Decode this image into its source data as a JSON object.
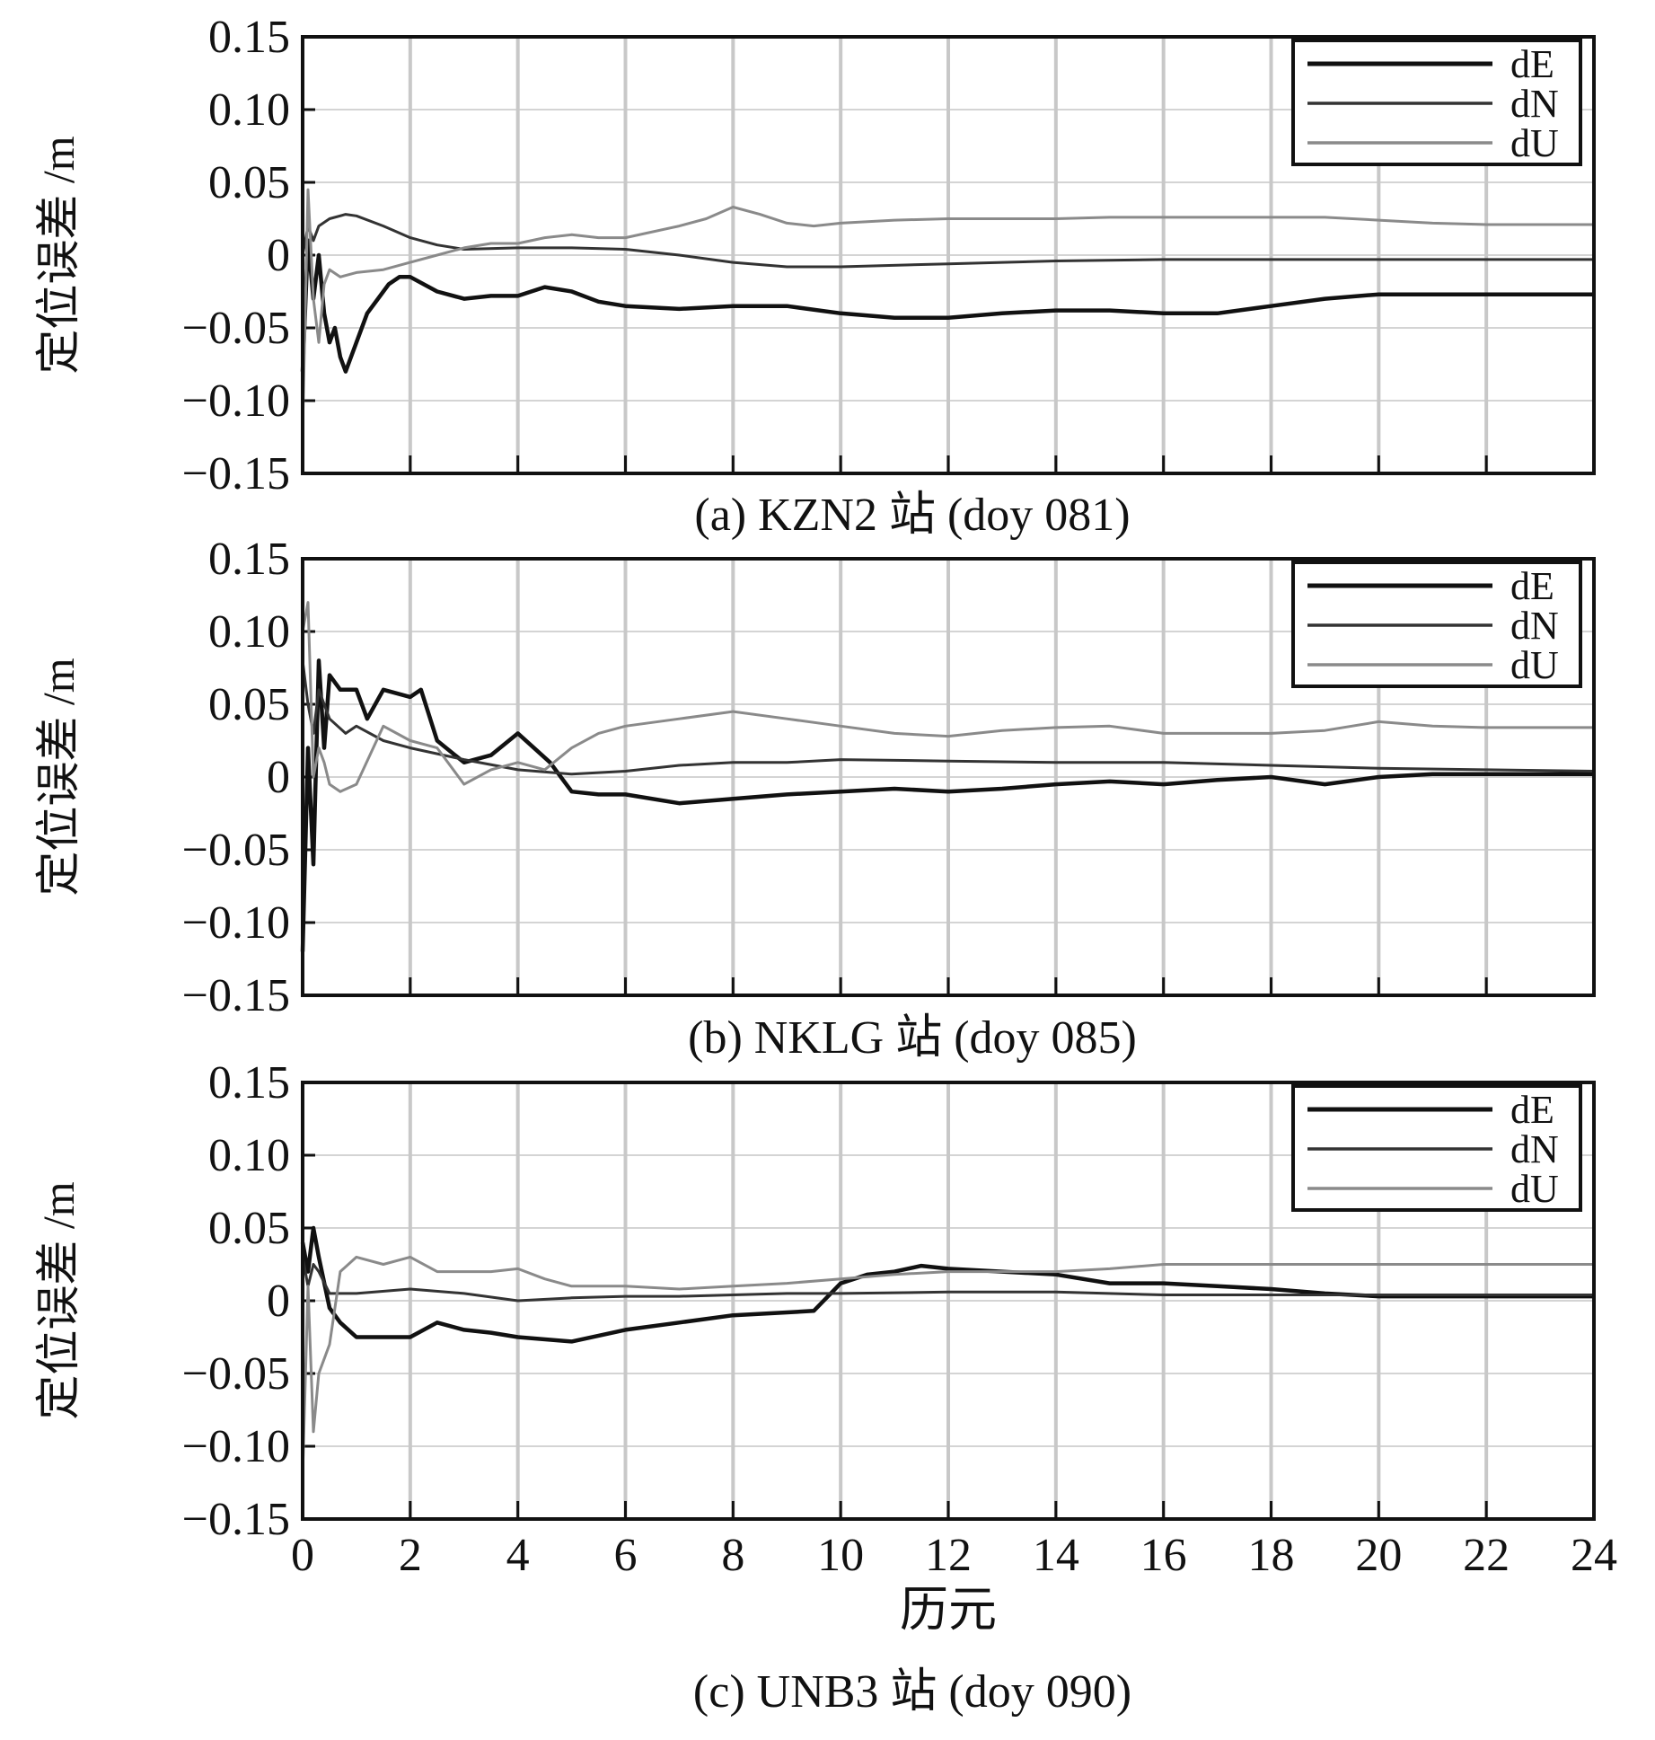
{
  "chart_data": [
    {
      "type": "line",
      "caption": "(a) KZN2 站 (doy 081)",
      "ylabel": "定位误差 /m",
      "xlabel": "",
      "xlim": [
        0,
        24
      ],
      "ylim": [
        -0.15,
        0.15
      ],
      "yticks": [
        "0.15",
        "0.10",
        "0.05",
        "0",
        "−0.05",
        "−0.10",
        "−0.15"
      ],
      "xticks": [],
      "grid": true,
      "legend": [
        "dE",
        "dN",
        "dU"
      ],
      "legend_position": "top-right",
      "series": [
        {
          "name": "dE",
          "color": "#111111",
          "width": 4.5,
          "x": [
            0,
            0.1,
            0.2,
            0.3,
            0.4,
            0.5,
            0.6,
            0.7,
            0.8,
            0.9,
            1.0,
            1.2,
            1.4,
            1.6,
            1.8,
            2.0,
            2.5,
            3.0,
            3.5,
            4.0,
            4.5,
            5.0,
            5.5,
            6.0,
            7.0,
            8.0,
            9.0,
            10.0,
            11.0,
            12.0,
            13.0,
            14.0,
            15.0,
            16.0,
            17.0,
            18.0,
            19.0,
            20.0,
            22.0,
            24.0
          ],
          "y": [
            -0.08,
            0.01,
            -0.03,
            0.0,
            -0.04,
            -0.06,
            -0.05,
            -0.07,
            -0.08,
            -0.07,
            -0.06,
            -0.04,
            -0.03,
            -0.02,
            -0.015,
            -0.015,
            -0.025,
            -0.03,
            -0.028,
            -0.028,
            -0.022,
            -0.025,
            -0.032,
            -0.035,
            -0.037,
            -0.035,
            -0.035,
            -0.04,
            -0.043,
            -0.043,
            -0.04,
            -0.038,
            -0.038,
            -0.04,
            -0.04,
            -0.035,
            -0.03,
            -0.027,
            -0.027,
            -0.027
          ]
        },
        {
          "name": "dN",
          "color": "#333333",
          "width": 3,
          "x": [
            0,
            0.1,
            0.2,
            0.3,
            0.5,
            0.8,
            1.0,
            1.5,
            2.0,
            2.5,
            3.0,
            4.0,
            5.0,
            6.0,
            7.0,
            8.0,
            9.0,
            10.0,
            12.0,
            14.0,
            16.0,
            18.0,
            20.0,
            22.0,
            24.0
          ],
          "y": [
            0.0,
            0.02,
            0.01,
            0.02,
            0.025,
            0.028,
            0.027,
            0.02,
            0.012,
            0.007,
            0.004,
            0.005,
            0.005,
            0.004,
            0.0,
            -0.005,
            -0.008,
            -0.008,
            -0.006,
            -0.004,
            -0.003,
            -0.003,
            -0.003,
            -0.003,
            -0.003
          ]
        },
        {
          "name": "dU",
          "color": "#8a8a8a",
          "width": 3,
          "x": [
            0,
            0.1,
            0.2,
            0.3,
            0.4,
            0.5,
            0.7,
            1.0,
            1.5,
            2.0,
            2.5,
            3.0,
            3.5,
            4.0,
            4.5,
            5.0,
            5.5,
            6.0,
            7.0,
            7.5,
            8.0,
            8.5,
            9.0,
            9.5,
            10.0,
            11.0,
            12.0,
            13.0,
            14.0,
            15.0,
            16.0,
            17.0,
            18.0,
            19.0,
            20.0,
            21.0,
            22.0,
            23.0,
            24.0
          ],
          "y": [
            -0.12,
            0.045,
            -0.03,
            -0.06,
            -0.02,
            -0.01,
            -0.015,
            -0.012,
            -0.01,
            -0.005,
            0.0,
            0.005,
            0.008,
            0.008,
            0.012,
            0.014,
            0.012,
            0.012,
            0.02,
            0.025,
            0.033,
            0.028,
            0.022,
            0.02,
            0.022,
            0.024,
            0.025,
            0.025,
            0.025,
            0.026,
            0.026,
            0.026,
            0.026,
            0.026,
            0.024,
            0.022,
            0.021,
            0.021,
            0.021
          ]
        }
      ]
    },
    {
      "type": "line",
      "caption": "(b) NKLG 站 (doy 085)",
      "ylabel": "定位误差 /m",
      "xlabel": "",
      "xlim": [
        0,
        24
      ],
      "ylim": [
        -0.15,
        0.15
      ],
      "yticks": [
        "0.15",
        "0.10",
        "0.05",
        "0",
        "−0.05",
        "−0.10",
        "−0.15"
      ],
      "xticks": [],
      "grid": true,
      "legend": [
        "dE",
        "dN",
        "dU"
      ],
      "legend_position": "top-right",
      "series": [
        {
          "name": "dE",
          "color": "#111111",
          "width": 4.5,
          "x": [
            0,
            0.1,
            0.2,
            0.3,
            0.4,
            0.5,
            0.7,
            1.0,
            1.2,
            1.5,
            2.0,
            2.2,
            2.5,
            3.0,
            3.5,
            4.0,
            4.3,
            4.6,
            5.0,
            5.5,
            6.0,
            7.0,
            8.0,
            9.0,
            10.0,
            11.0,
            12.0,
            13.0,
            14.0,
            15.0,
            16.0,
            17.0,
            18.0,
            19.0,
            20.0,
            21.0,
            22.0,
            23.0,
            24.0
          ],
          "y": [
            -0.12,
            0.02,
            -0.06,
            0.08,
            0.02,
            0.07,
            0.06,
            0.06,
            0.04,
            0.06,
            0.055,
            0.06,
            0.025,
            0.01,
            0.015,
            0.03,
            0.02,
            0.01,
            -0.01,
            -0.012,
            -0.012,
            -0.018,
            -0.015,
            -0.012,
            -0.01,
            -0.008,
            -0.01,
            -0.008,
            -0.005,
            -0.003,
            -0.005,
            -0.002,
            0.0,
            -0.005,
            0.0,
            0.002,
            0.002,
            0.002,
            0.002
          ]
        },
        {
          "name": "dN",
          "color": "#333333",
          "width": 3,
          "x": [
            0,
            0.1,
            0.2,
            0.3,
            0.5,
            0.8,
            1.0,
            1.5,
            2.0,
            3.0,
            4.0,
            5.0,
            6.0,
            7.0,
            8.0,
            9.0,
            10.0,
            12.0,
            14.0,
            16.0,
            18.0,
            20.0,
            22.0,
            24.0
          ],
          "y": [
            0.08,
            0.05,
            0.03,
            0.06,
            0.04,
            0.03,
            0.035,
            0.025,
            0.02,
            0.012,
            0.005,
            0.002,
            0.004,
            0.008,
            0.01,
            0.01,
            0.012,
            0.011,
            0.01,
            0.01,
            0.008,
            0.006,
            0.005,
            0.004
          ]
        },
        {
          "name": "dU",
          "color": "#8a8a8a",
          "width": 3,
          "x": [
            0,
            0.1,
            0.2,
            0.3,
            0.4,
            0.5,
            0.7,
            1.0,
            1.5,
            2.0,
            2.5,
            3.0,
            3.5,
            4.0,
            4.5,
            5.0,
            5.5,
            6.0,
            7.0,
            8.0,
            9.0,
            10.0,
            11.0,
            12.0,
            13.0,
            14.0,
            15.0,
            16.0,
            17.0,
            18.0,
            19.0,
            20.0,
            21.0,
            22.0,
            23.0,
            24.0
          ],
          "y": [
            0.1,
            0.12,
            0.0,
            0.02,
            0.01,
            -0.005,
            -0.01,
            -0.005,
            0.035,
            0.025,
            0.02,
            -0.005,
            0.005,
            0.01,
            0.005,
            0.02,
            0.03,
            0.035,
            0.04,
            0.045,
            0.04,
            0.035,
            0.03,
            0.028,
            0.032,
            0.034,
            0.035,
            0.03,
            0.03,
            0.03,
            0.032,
            0.038,
            0.035,
            0.034,
            0.034,
            0.034
          ]
        }
      ]
    },
    {
      "type": "line",
      "caption": "(c) UNB3 站 (doy 090)",
      "ylabel": "定位误差 /m",
      "xlabel": "历元",
      "xlim": [
        0,
        24
      ],
      "ylim": [
        -0.15,
        0.15
      ],
      "yticks": [
        "0.15",
        "0.10",
        "0.05",
        "0",
        "−0.05",
        "−0.10",
        "−0.15"
      ],
      "xticks": [
        "0",
        "2",
        "4",
        "6",
        "8",
        "10",
        "12",
        "14",
        "16",
        "18",
        "20",
        "22",
        "24"
      ],
      "grid": true,
      "legend": [
        "dE",
        "dN",
        "dU"
      ],
      "legend_position": "top-right",
      "series": [
        {
          "name": "dE",
          "color": "#111111",
          "width": 4.5,
          "x": [
            0,
            0.1,
            0.2,
            0.3,
            0.5,
            0.7,
            1.0,
            1.5,
            2.0,
            2.5,
            3.0,
            3.5,
            4.0,
            5.0,
            6.0,
            7.0,
            8.0,
            9.0,
            9.5,
            10.0,
            10.5,
            11.0,
            11.5,
            12.0,
            13.0,
            14.0,
            15.0,
            16.0,
            17.0,
            18.0,
            19.0,
            20.0,
            22.0,
            24.0
          ],
          "y": [
            0.04,
            0.02,
            0.05,
            0.03,
            -0.005,
            -0.015,
            -0.025,
            -0.025,
            -0.025,
            -0.015,
            -0.02,
            -0.022,
            -0.025,
            -0.028,
            -0.02,
            -0.015,
            -0.01,
            -0.008,
            -0.007,
            0.012,
            0.018,
            0.02,
            0.024,
            0.022,
            0.02,
            0.018,
            0.012,
            0.012,
            0.01,
            0.008,
            0.005,
            0.003,
            0.003,
            0.003
          ]
        },
        {
          "name": "dN",
          "color": "#333333",
          "width": 3,
          "x": [
            0,
            0.1,
            0.2,
            0.3,
            0.5,
            1.0,
            2.0,
            3.0,
            4.0,
            5.0,
            6.0,
            7.0,
            8.0,
            9.0,
            10.0,
            12.0,
            14.0,
            16.0,
            18.0,
            20.0,
            22.0,
            24.0
          ],
          "y": [
            0.03,
            0.01,
            0.025,
            0.02,
            0.005,
            0.005,
            0.008,
            0.005,
            0.0,
            0.002,
            0.003,
            0.003,
            0.004,
            0.005,
            0.005,
            0.006,
            0.006,
            0.004,
            0.004,
            0.004,
            0.004,
            0.004
          ]
        },
        {
          "name": "dU",
          "color": "#8a8a8a",
          "width": 3,
          "x": [
            0,
            0.1,
            0.2,
            0.3,
            0.4,
            0.5,
            0.7,
            1.0,
            1.5,
            2.0,
            2.5,
            3.0,
            3.5,
            4.0,
            4.5,
            5.0,
            6.0,
            7.0,
            8.0,
            9.0,
            10.0,
            11.0,
            12.0,
            13.0,
            14.0,
            15.0,
            16.0,
            17.0,
            18.0,
            19.0,
            20.0,
            21.0,
            22.0,
            23.0,
            24.0
          ],
          "y": [
            -0.12,
            0.01,
            -0.09,
            -0.05,
            -0.04,
            -0.03,
            0.02,
            0.03,
            0.025,
            0.03,
            0.02,
            0.02,
            0.02,
            0.022,
            0.015,
            0.01,
            0.01,
            0.008,
            0.01,
            0.012,
            0.015,
            0.018,
            0.02,
            0.02,
            0.02,
            0.022,
            0.025,
            0.025,
            0.025,
            0.025,
            0.025,
            0.025,
            0.025,
            0.025,
            0.025
          ]
        }
      ]
    }
  ]
}
